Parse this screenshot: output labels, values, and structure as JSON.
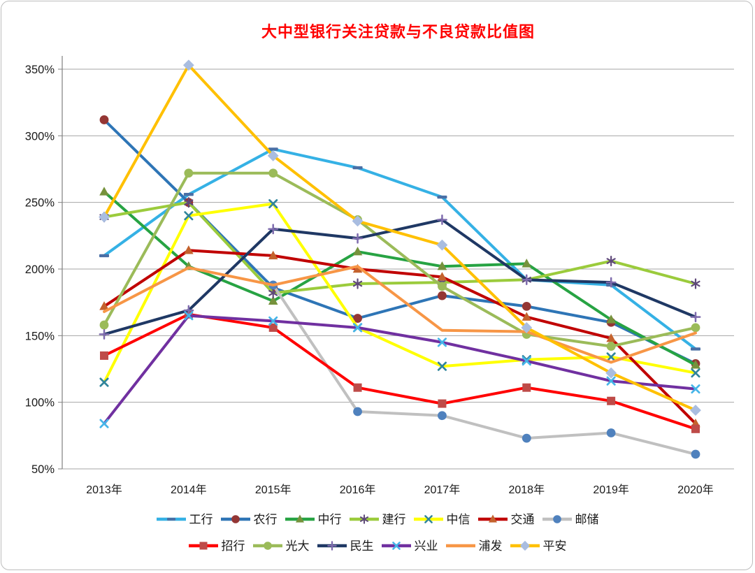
{
  "chart_data": {
    "type": "line",
    "title": "大中型银行关注贷款与不良贷款比值图",
    "title_color": "#FF0000",
    "x_categories": [
      "2013年",
      "2014年",
      "2015年",
      "2016年",
      "2017年",
      "2018年",
      "2019年",
      "2020年"
    ],
    "y_tick_labels": [
      "350%",
      "300%",
      "250%",
      "200%",
      "150%",
      "100%",
      "50%"
    ],
    "ylim": [
      50,
      350
    ],
    "y_tick_step": 50,
    "y_unit": "%",
    "grid": true,
    "legend_position": "bottom",
    "legend_rows": [
      [
        0,
        1,
        2,
        3,
        4,
        5,
        6
      ],
      [
        7,
        8,
        9,
        10,
        11,
        12
      ]
    ],
    "axis_color": "#808080",
    "grid_color": "#a6a6a6",
    "label_color": "#1a1a1a",
    "series": [
      {
        "name": "工行",
        "key": "icbc",
        "color": "#35b1e5",
        "marker": "dash",
        "marker_color": "#4a6fa5",
        "values": [
          210,
          256,
          290,
          276,
          254,
          192,
          188,
          140
        ]
      },
      {
        "name": "农行",
        "key": "abc",
        "color": "#2e75b6",
        "marker": "circle",
        "marker_color": "#943634",
        "values": [
          312,
          250,
          186,
          163,
          180,
          172,
          160,
          129
        ]
      },
      {
        "name": "中行",
        "key": "boc",
        "color": "#27a343",
        "marker": "triangle",
        "marker_color": "#76923c",
        "values": [
          258,
          202,
          176,
          213,
          202,
          204,
          162,
          128
        ]
      },
      {
        "name": "建行",
        "key": "ccb",
        "color": "#9bcb3c",
        "marker": "asterisk",
        "marker_color": "#5f497a",
        "values": [
          239,
          250,
          182,
          189,
          190,
          192,
          206,
          189
        ]
      },
      {
        "name": "中信",
        "key": "citic",
        "color": "#ffff00",
        "marker": "x",
        "marker_color": "#31859c",
        "values": [
          115,
          240,
          249,
          156,
          127,
          132,
          134,
          122
        ]
      },
      {
        "name": "交通",
        "key": "bocom",
        "color": "#c00000",
        "marker": "triangle",
        "marker_color": "#c4622d",
        "values": [
          172,
          214,
          210,
          200,
          194,
          164,
          148,
          84
        ]
      },
      {
        "name": "邮储",
        "key": "psbc",
        "color": "#c0c0c0",
        "marker": "circle",
        "marker_color": "#4f81bd",
        "values": [
          null,
          null,
          188,
          93,
          90,
          73,
          77,
          61
        ]
      },
      {
        "name": "招行",
        "key": "cmb",
        "color": "#ff0000",
        "marker": "square",
        "marker_color": "#be4b48",
        "values": [
          135,
          166,
          156,
          111,
          99,
          111,
          101,
          80
        ]
      },
      {
        "name": "光大",
        "key": "ceb",
        "color": "#9bbb59",
        "marker": "circle",
        "marker_color": "#9bbb59",
        "values": [
          158,
          272,
          272,
          237,
          187,
          151,
          142,
          156
        ]
      },
      {
        "name": "民生",
        "key": "cmbc",
        "color": "#1f3864",
        "marker": "plus",
        "marker_color": "#7e6bad",
        "values": [
          151,
          169,
          230,
          223,
          237,
          192,
          190,
          164
        ]
      },
      {
        "name": "兴业",
        "key": "cib",
        "color": "#7030a0",
        "marker": "x",
        "marker_color": "#45b5e8",
        "values": [
          84,
          165,
          161,
          156,
          145,
          131,
          116,
          110
        ]
      },
      {
        "name": "浦发",
        "key": "spdb",
        "color": "#f79646",
        "marker": "none",
        "marker_color": "#f79646",
        "values": [
          168,
          201,
          188,
          202,
          154,
          153,
          130,
          152
        ]
      },
      {
        "name": "平安",
        "key": "pingan",
        "color": "#ffc000",
        "marker": "diamond",
        "marker_color": "#a9bde0",
        "values": [
          239,
          353,
          285,
          236,
          218,
          156,
          122,
          94
        ]
      }
    ]
  }
}
